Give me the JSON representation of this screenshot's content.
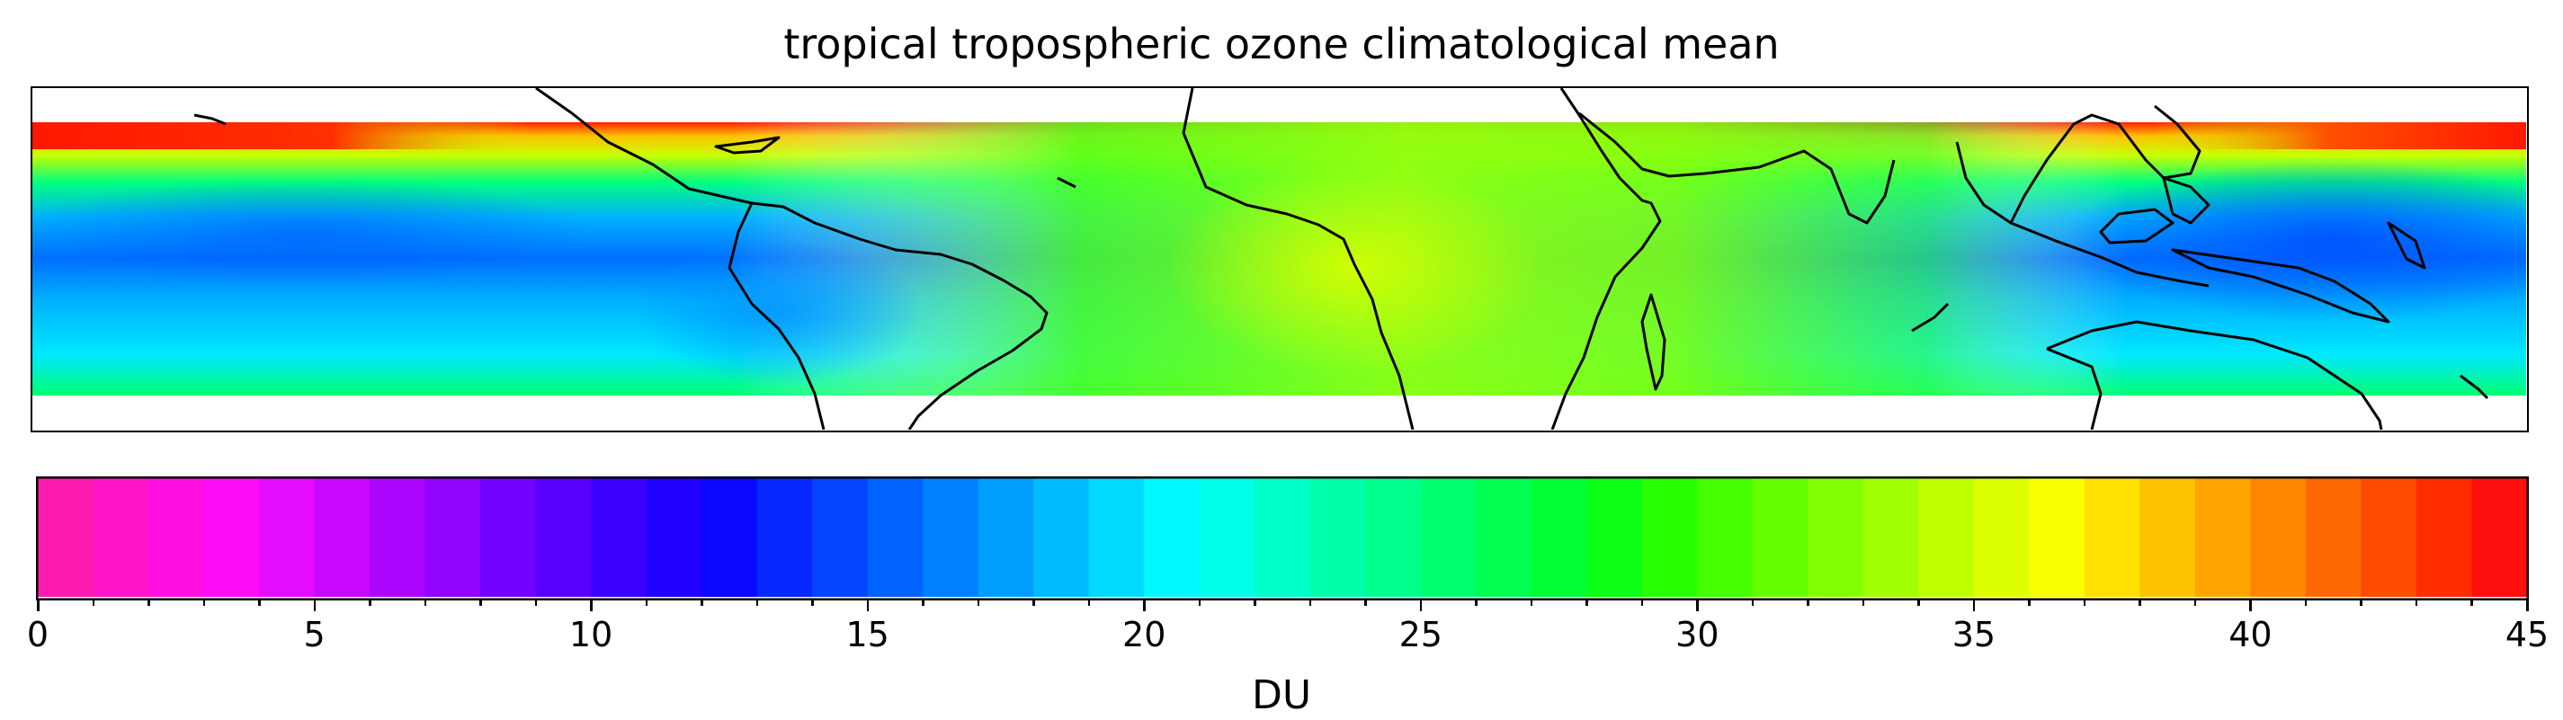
{
  "title": "tropical tropospheric ozone climatological mean",
  "colorbar": {
    "label": "DU",
    "min": 0,
    "max": 45,
    "step": 1,
    "ticks": [
      "0",
      "5",
      "10",
      "15",
      "20",
      "25",
      "30",
      "35",
      "40",
      "45"
    ],
    "colors": [
      "#ff1ab0",
      "#ff14c8",
      "#ff10e0",
      "#ff0cf8",
      "#e40cff",
      "#c808ff",
      "#ac06ff",
      "#9004ff",
      "#7402ff",
      "#5800ff",
      "#3c00ff",
      "#2000ff",
      "#0a08ff",
      "#0626ff",
      "#0444ff",
      "#0262ff",
      "#0080ff",
      "#009eff",
      "#00bcff",
      "#00daff",
      "#00f8ff",
      "#00ffe6",
      "#00ffc8",
      "#00ffaa",
      "#00ff8c",
      "#00ff6e",
      "#00ff50",
      "#00ff32",
      "#0aff14",
      "#28ff00",
      "#46ff00",
      "#64ff00",
      "#82ff00",
      "#a0ff00",
      "#beff00",
      "#dcff00",
      "#faff00",
      "#ffe000",
      "#ffc200",
      "#ffa400",
      "#ff8600",
      "#ff6800",
      "#ff4a00",
      "#ff2c00",
      "#ff0e0e",
      "#ff1040"
    ]
  },
  "map": {
    "projection": "equirectangular",
    "lon_range": [
      -180,
      180
    ],
    "lat_range": [
      -25,
      25
    ],
    "data_lat_range": [
      -20,
      20
    ],
    "coastline_color": "#000000"
  }
}
